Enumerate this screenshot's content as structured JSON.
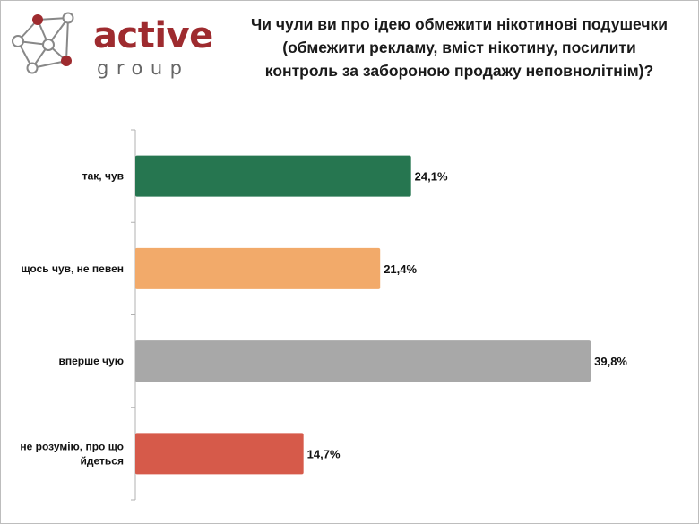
{
  "logo": {
    "word": "active",
    "sub": "group"
  },
  "title_lines": [
    "Чи чули ви про ідею обмежити нікотинові подушечки",
    "(обмежити рекламу, вміст  нікотину, посилити",
    "контроль за забороною продажу неповнолітнім)?"
  ],
  "colors": {
    "brand": "#9e2b2f",
    "axis": "#b0b0b0"
  },
  "chart_data": {
    "type": "bar",
    "orientation": "horizontal",
    "title": "Чи чули ви про ідею обмежити нікотинові подушечки (обмежити рекламу, вміст  нікотину, посилити контроль за забороною продажу неповнолітнім)?",
    "categories": [
      [
        "так, чув"
      ],
      [
        "щось чув, не певен"
      ],
      [
        "вперше чую"
      ],
      [
        "не розумію, про що",
        "йдеться"
      ]
    ],
    "values": [
      24.1,
      21.4,
      39.8,
      14.7
    ],
    "value_labels": [
      "24,1%",
      "21,4%",
      "39,8%",
      "14,7%"
    ],
    "colors": [
      "#267650",
      "#f2aa6a",
      "#a8a8a8",
      "#d65a4a"
    ],
    "unit": "%",
    "xlim": [
      0,
      41.2
    ],
    "grid": false,
    "legend": "none"
  }
}
